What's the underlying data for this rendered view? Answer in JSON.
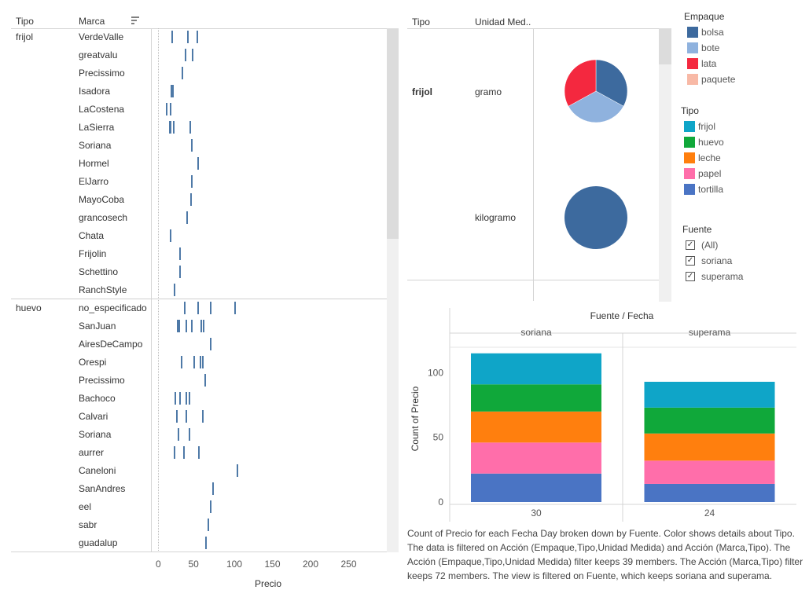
{
  "strip_plot": {
    "col_tipo": "Tipo",
    "col_marca": "Marca",
    "sort_icon": "sort-icon",
    "x_label": "Precio",
    "x_ticks": [
      0,
      50,
      100,
      150,
      200,
      250
    ],
    "mark_color": "#4e79a7",
    "groups": [
      {
        "tipo": "frijol",
        "rows": [
          {
            "marca": "VerdeValle",
            "precios": [
              19,
              39,
              52
            ]
          },
          {
            "marca": "greatvalu",
            "precios": [
              36,
              45
            ]
          },
          {
            "marca": "Precissimo",
            "precios": [
              32
            ]
          },
          {
            "marca": "Isadora",
            "precios": [
              18,
              20
            ]
          },
          {
            "marca": "LaCostena",
            "precios": [
              11,
              16
            ]
          },
          {
            "marca": "LaSierra",
            "precios": [
              15,
              17,
              21,
              42
            ]
          },
          {
            "marca": "Soriana",
            "precios": [
              44
            ]
          },
          {
            "marca": "Hormel",
            "precios": [
              53
            ]
          },
          {
            "marca": "ElJarro",
            "precios": [
              44
            ]
          },
          {
            "marca": "MayoCoba",
            "precios": [
              43
            ]
          },
          {
            "marca": "grancosech",
            "precios": [
              38
            ]
          },
          {
            "marca": "Chata",
            "precios": [
              16
            ]
          },
          {
            "marca": "Frijolin",
            "precios": [
              29
            ]
          },
          {
            "marca": "Schettino",
            "precios": [
              29
            ]
          },
          {
            "marca": "RanchStyle",
            "precios": [
              22
            ]
          }
        ]
      },
      {
        "tipo": "huevo",
        "rows": [
          {
            "marca": "no_especificado",
            "precios": [
              35,
              53,
              69,
              101
            ]
          },
          {
            "marca": "SanJuan",
            "precios": [
              26,
              28,
              37,
              44,
              57,
              60
            ]
          },
          {
            "marca": "AiresDeCampo",
            "precios": [
              69
            ]
          },
          {
            "marca": "Orespi",
            "precios": [
              31,
              47,
              56,
              59
            ]
          },
          {
            "marca": "Precissimo",
            "precios": [
              62
            ]
          },
          {
            "marca": "Bachoco",
            "precios": [
              23,
              29,
              37,
              41
            ]
          },
          {
            "marca": "Calvari",
            "precios": [
              25,
              37,
              59
            ]
          },
          {
            "marca": "Soriana",
            "precios": [
              27,
              41
            ]
          },
          {
            "marca": "aurrer",
            "precios": [
              22,
              34,
              54
            ]
          },
          {
            "marca": "Caneloni",
            "precios": [
              104
            ]
          },
          {
            "marca": "SanAndres",
            "precios": [
              72
            ]
          },
          {
            "marca": "eel",
            "precios": [
              69
            ]
          },
          {
            "marca": "sabr",
            "precios": [
              66
            ]
          },
          {
            "marca": "guadalup",
            "precios": [
              63
            ]
          }
        ]
      }
    ]
  },
  "pie_panel": {
    "col_tipo": "Tipo",
    "col_unidad": "Unidad Med..",
    "tipo": "frijol",
    "rows": [
      {
        "unidad": "gramo",
        "slices": [
          {
            "empaque": "bolsa",
            "share": 0.33,
            "color": "#3d6a9e"
          },
          {
            "empaque": "bote",
            "share": 0.34,
            "color": "#8fb2de"
          },
          {
            "empaque": "lata",
            "share": 0.33,
            "color": "#f4283f"
          }
        ]
      },
      {
        "unidad": "kilogramo",
        "slices": [
          {
            "empaque": "bolsa",
            "share": 1.0,
            "color": "#3d6a9e"
          }
        ]
      }
    ]
  },
  "legends": {
    "empaque": {
      "title": "Empaque",
      "items": [
        {
          "label": "bolsa",
          "color": "#3d6a9e"
        },
        {
          "label": "bote",
          "color": "#8fb2de"
        },
        {
          "label": "lata",
          "color": "#f4283f"
        },
        {
          "label": "paquete",
          "color": "#f8b9a6"
        }
      ]
    },
    "tipo": {
      "title": "Tipo",
      "items": [
        {
          "label": "frijol",
          "color": "#0fa5c8"
        },
        {
          "label": "huevo",
          "color": "#10a83a"
        },
        {
          "label": "leche",
          "color": "#ff7f0e"
        },
        {
          "label": "papel",
          "color": "#ff6eaa"
        },
        {
          "label": "tortilla",
          "color": "#4a74c4"
        }
      ]
    },
    "fuente": {
      "title": "Fuente",
      "items": [
        {
          "label": "(All)",
          "checked": true
        },
        {
          "label": "soriana",
          "checked": true
        },
        {
          "label": "superama",
          "checked": true
        }
      ]
    }
  },
  "chart_data": {
    "type": "bar",
    "title": "Fuente / Fecha",
    "ylabel": "Count of Precio",
    "ylim": [
      0,
      127
    ],
    "y_ticks": [
      0,
      50,
      100
    ],
    "stacked": true,
    "panels": [
      {
        "fuente": "soriana",
        "fecha": "30",
        "segments": [
          {
            "tipo": "tortilla",
            "value": 22
          },
          {
            "tipo": "papel",
            "value": 24
          },
          {
            "tipo": "leche",
            "value": 24
          },
          {
            "tipo": "huevo",
            "value": 21
          },
          {
            "tipo": "frijol",
            "value": 24
          }
        ]
      },
      {
        "fuente": "superama",
        "fecha": "24",
        "segments": [
          {
            "tipo": "tortilla",
            "value": 14
          },
          {
            "tipo": "papel",
            "value": 18
          },
          {
            "tipo": "leche",
            "value": 21
          },
          {
            "tipo": "huevo",
            "value": 20
          },
          {
            "tipo": "frijol",
            "value": 20
          }
        ]
      }
    ]
  },
  "caption": "Count of Precio for each Fecha Day broken down by Fuente.  Color shows details about Tipo. The data is filtered on Acción (Empaque,Tipo,Unidad Medida) and Acción (Marca,Tipo). The Acción (Empaque,Tipo,Unidad Medida) filter keeps 39 members. The Acción (Marca,Tipo) filter keeps 72 members. The view is filtered on Fuente, which keeps soriana and superama."
}
